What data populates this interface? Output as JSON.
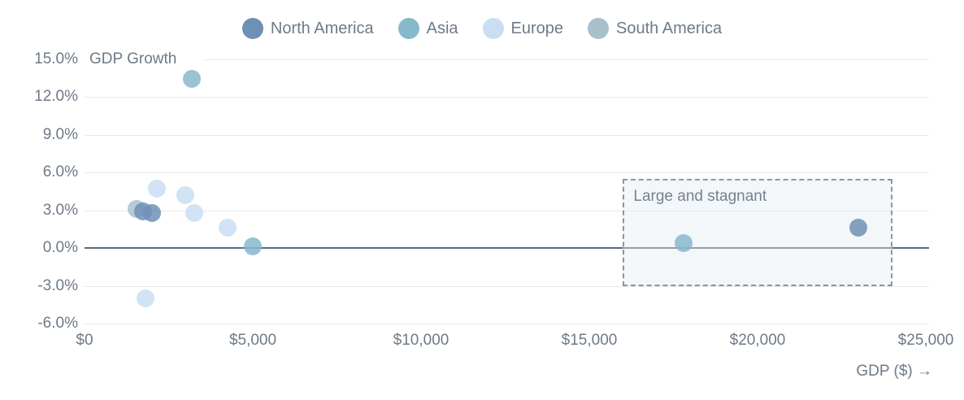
{
  "chart_data": {
    "type": "scatter",
    "title": "GDP Growth",
    "xlabel": "GDP ($) →",
    "xlim": [
      0,
      25100
    ],
    "ylim": [
      -6,
      15
    ],
    "grid": "horizontal-only",
    "legend_position": "top-center",
    "x_ticks": [
      {
        "value": 0,
        "label": "$0"
      },
      {
        "value": 5000,
        "label": "$5,000"
      },
      {
        "value": 10000,
        "label": "$10,000"
      },
      {
        "value": 15000,
        "label": "$15,000"
      },
      {
        "value": 20000,
        "label": "$20,000"
      },
      {
        "value": 25000,
        "label": "$25,000"
      }
    ],
    "y_ticks": [
      {
        "value": 15,
        "label": "15.0%"
      },
      {
        "value": 12,
        "label": "12.0%"
      },
      {
        "value": 9,
        "label": "9.0%"
      },
      {
        "value": 6,
        "label": "6.0%"
      },
      {
        "value": 3,
        "label": "3.0%"
      },
      {
        "value": 0,
        "label": "0.0%"
      },
      {
        "value": -3,
        "label": "-3.0%"
      },
      {
        "value": -6,
        "label": "-6.0%"
      }
    ],
    "series": [
      {
        "name": "North America",
        "color": "#6e90b5",
        "points": [
          {
            "x": 1750,
            "y": 2.9
          },
          {
            "x": 2000,
            "y": 2.8
          },
          {
            "x": 23000,
            "y": 1.6
          }
        ]
      },
      {
        "name": "Asia",
        "color": "#87b9cd",
        "points": [
          {
            "x": 3200,
            "y": 13.4
          },
          {
            "x": 5000,
            "y": 0.1
          },
          {
            "x": 17800,
            "y": 0.4
          }
        ]
      },
      {
        "name": "Europe",
        "color": "#c9def2",
        "points": [
          {
            "x": 2150,
            "y": 4.7
          },
          {
            "x": 3000,
            "y": 4.2
          },
          {
            "x": 3250,
            "y": 2.8
          },
          {
            "x": 4250,
            "y": 1.6
          },
          {
            "x": 1800,
            "y": -4.0
          }
        ]
      },
      {
        "name": "South America",
        "color": "#aabfcc",
        "points": [
          {
            "x": 1550,
            "y": 3.1
          }
        ]
      }
    ],
    "annotation": {
      "label": "Large and stagnant",
      "x0": 16000,
      "x1": 24000,
      "y0": -3.0,
      "y1": 5.5
    }
  },
  "colors": {
    "text": "#6e7a88",
    "gridline": "#e8e9ec",
    "zero_line": "#5c6b7b",
    "annotation_border": "#8a96a4",
    "annotation_fill": "#e0eaf3"
  }
}
